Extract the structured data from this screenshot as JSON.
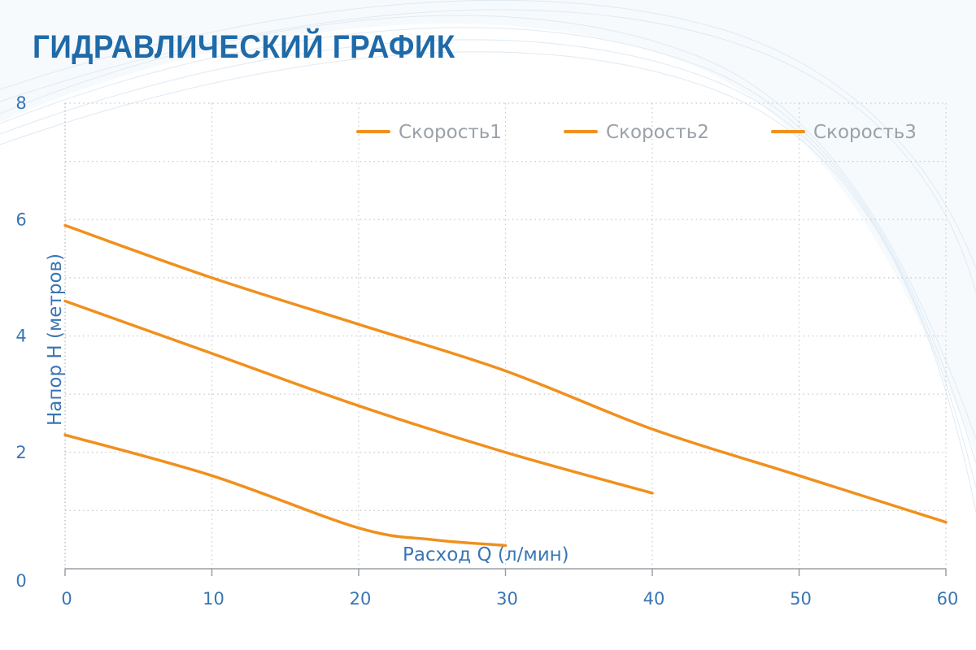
{
  "page": {
    "title": "ГИДРАВЛИЧЕСКИЙ ГРАФИК"
  },
  "colors": {
    "title": "#1f6aa8",
    "axis_text": "#3a76b3",
    "series": "#f0901e",
    "grid": "#c9c9c9",
    "legend_text": "#9aa1a8"
  },
  "chart_data": {
    "type": "line",
    "title": "ГИДРАВЛИЧЕСКИЙ ГРАФИК",
    "xlabel": "Расход Q (л/мин)",
    "ylabel": "Напор H (метров)",
    "xlim": [
      0,
      60
    ],
    "ylim": [
      0,
      8
    ],
    "xticks": [
      0,
      10,
      20,
      30,
      40,
      50,
      60
    ],
    "yticks": [
      0,
      2,
      4,
      6,
      8
    ],
    "grid": true,
    "legend_position": "top-right",
    "series": [
      {
        "name": "Скорость1",
        "x": [
          0,
          10,
          20,
          25,
          30
        ],
        "y": [
          2.3,
          1.6,
          0.7,
          0.5,
          0.4
        ]
      },
      {
        "name": "Скорость2",
        "x": [
          0,
          10,
          20,
          30,
          40
        ],
        "y": [
          4.6,
          3.7,
          2.8,
          2.0,
          1.3
        ]
      },
      {
        "name": "Скорость3",
        "x": [
          0,
          10,
          20,
          30,
          40,
          50,
          60
        ],
        "y": [
          5.9,
          5.0,
          4.2,
          3.4,
          2.4,
          1.6,
          0.8
        ]
      }
    ]
  }
}
